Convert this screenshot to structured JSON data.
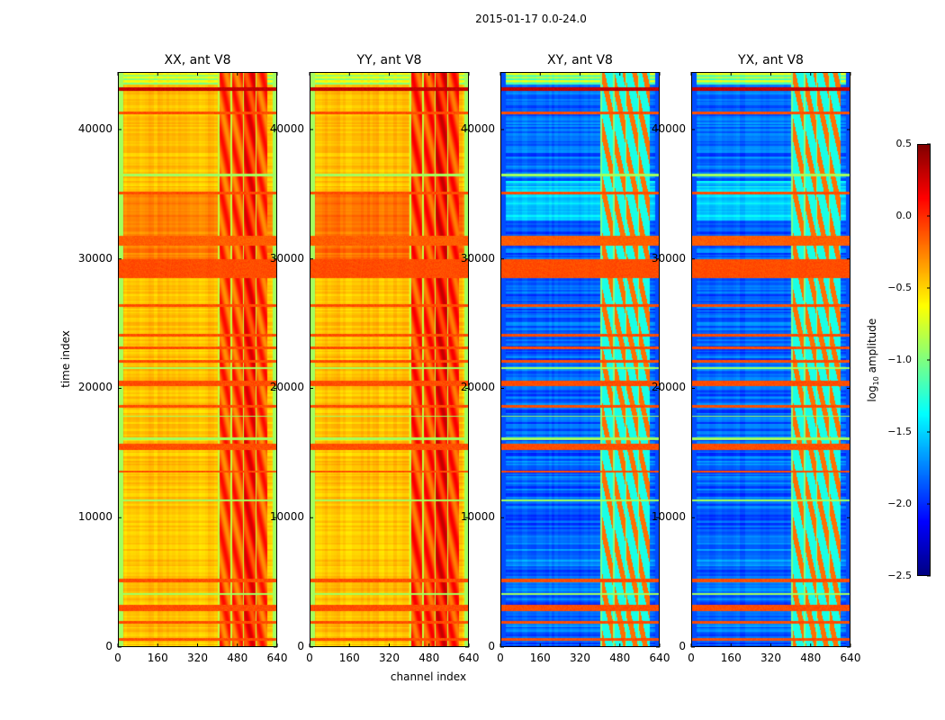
{
  "chart_data": {
    "type": "heatmap",
    "title": "2015-01-17 0.0-24.0",
    "xlabel": "channel index",
    "ylabel": "time index",
    "xlim": [
      0,
      640
    ],
    "ylim": [
      0,
      44450
    ],
    "xticks": [
      "0",
      "160",
      "320",
      "480",
      "640"
    ],
    "xtick_values": [
      0,
      160,
      320,
      480,
      640
    ],
    "yticks": [
      "0",
      "10000",
      "20000",
      "30000",
      "40000"
    ],
    "ytick_values": [
      0,
      10000,
      20000,
      30000,
      40000
    ],
    "colorbar": {
      "label": "log10 amplitude",
      "label_base": "log",
      "label_sub": "10",
      "label_rest": " amplitude",
      "min": -2.5,
      "max": 0.5,
      "ticks": [
        "0.5",
        "0.0",
        "−0.5",
        "−1.0",
        "−1.5",
        "−2.0",
        "−2.5"
      ],
      "tick_values": [
        0.5,
        0.0,
        -0.5,
        -1.0,
        -1.5,
        -2.0,
        -2.5
      ],
      "colormap": "jet"
    },
    "panels": [
      {
        "title": "XX, ant V8",
        "base": -0.45,
        "edge": -0.9,
        "band_value": -0.1,
        "band_channels": [
          400,
          600
        ],
        "top_value": -0.85,
        "regions": [
          [
            30000,
            35000,
            -0.25
          ]
        ]
      },
      {
        "title": "YY, ant V8",
        "base": -0.45,
        "edge": -0.9,
        "band_value": -0.05,
        "band_channels": [
          400,
          600
        ],
        "top_value": -0.85,
        "regions": [
          [
            30000,
            35000,
            -0.2
          ]
        ]
      },
      {
        "title": "XY, ant V8",
        "base": -1.85,
        "edge": -1.9,
        "band_value": -0.9,
        "band_channels": [
          400,
          600
        ],
        "top_value": -1.0,
        "regions": [
          [
            33000,
            36000,
            -1.5
          ],
          [
            6000,
            9000,
            -1.75
          ]
        ]
      },
      {
        "title": "YX, ant V8",
        "base": -1.85,
        "edge": -1.9,
        "band_value": -0.9,
        "band_channels": [
          400,
          600
        ],
        "top_value": -1.0,
        "regions": [
          [
            33000,
            36000,
            -1.5
          ],
          [
            6000,
            9000,
            -1.75
          ]
        ]
      }
    ],
    "stripes": [
      [
        43000,
        43300,
        0.3
      ],
      [
        41200,
        41400,
        -0.1
      ],
      [
        36400,
        36600,
        -0.9
      ],
      [
        35000,
        35200,
        -0.1
      ],
      [
        31000,
        31800,
        -0.15
      ],
      [
        28500,
        30000,
        -0.1
      ],
      [
        26300,
        26500,
        -0.1
      ],
      [
        24000,
        24200,
        -0.1
      ],
      [
        23000,
        23200,
        -0.1
      ],
      [
        22000,
        22200,
        -0.1
      ],
      [
        21500,
        21600,
        -0.9
      ],
      [
        20200,
        20600,
        -0.1
      ],
      [
        18500,
        18700,
        -0.1
      ],
      [
        17800,
        17900,
        -0.9
      ],
      [
        16000,
        16200,
        -0.9
      ],
      [
        15200,
        15700,
        -0.1
      ],
      [
        13500,
        13600,
        -0.1
      ],
      [
        11300,
        11400,
        -0.9
      ],
      [
        5000,
        5300,
        -0.1
      ],
      [
        4000,
        4200,
        -0.9
      ],
      [
        2800,
        3300,
        -0.1
      ],
      [
        1800,
        2000,
        -0.1
      ],
      [
        500,
        700,
        -0.1
      ]
    ]
  }
}
